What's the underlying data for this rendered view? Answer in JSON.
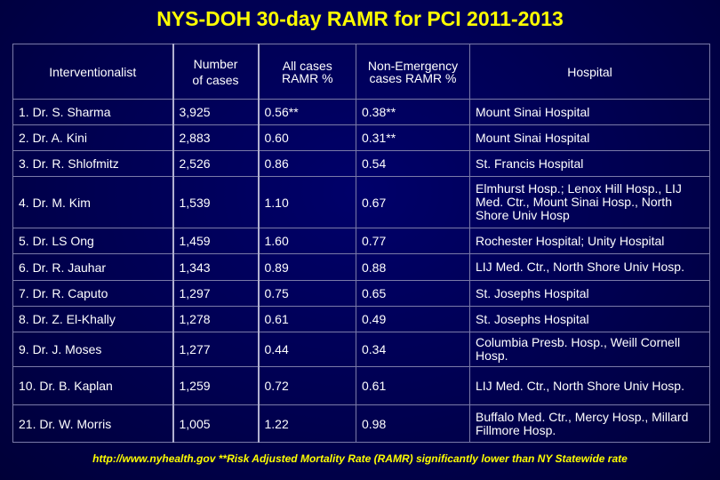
{
  "title": "NYS-DOH 30-day RAMR for PCI 2011-2013",
  "headers": {
    "interventionalist": "Interventionalist",
    "num_line1": "Number",
    "num_line2": "of cases",
    "all_line1": "All cases",
    "all_line2": "RAMR %",
    "ne_line1": "Non-Emergency",
    "ne_line2": "cases RAMR %",
    "hospital": "Hospital"
  },
  "rows": [
    {
      "name": "1. Dr. S. Sharma",
      "cases": "3,925",
      "all": "0.56**",
      "nonemerg": "0.38**",
      "hospital": "Mount Sinai Hospital"
    },
    {
      "name": "2. Dr. A. Kini",
      "cases": "2,883",
      "all": "0.60",
      "nonemerg": "0.31**",
      "hospital": "Mount Sinai Hospital"
    },
    {
      "name": "3. Dr. R. Shlofmitz",
      "cases": "2,526",
      "all": "0.86",
      "nonemerg": "0.54",
      "hospital": "St. Francis Hospital"
    },
    {
      "name": "4. Dr. M. Kim",
      "cases": "1,539",
      "all": "1.10",
      "nonemerg": "0.67",
      "hospital": "Elmhurst Hosp.; Lenox Hill Hosp., LIJ Med. Ctr., Mount Sinai Hosp., North Shore Univ Hosp"
    },
    {
      "name": "5. Dr. LS Ong",
      "cases": "1,459",
      "all": "1.60",
      "nonemerg": "0.77",
      "hospital": "Rochester Hospital; Unity Hospital"
    },
    {
      "name": "6. Dr. R. Jauhar",
      "cases": "1,343",
      "all": "0.89",
      "nonemerg": "0.88",
      "hospital": "LIJ Med. Ctr., North Shore Univ Hosp."
    },
    {
      "name": "7. Dr. R. Caputo",
      "cases": "1,297",
      "all": "0.75",
      "nonemerg": "0.65",
      "hospital": "St. Josephs Hospital"
    },
    {
      "name": "8. Dr. Z. El-Khally",
      "cases": "1,278",
      "all": "0.61",
      "nonemerg": "0.49",
      "hospital": "St. Josephs Hospital"
    },
    {
      "name": "9. Dr. J. Moses",
      "cases": "1,277",
      "all": "0.44",
      "nonemerg": "0.34",
      "hospital": "Columbia Presb. Hosp., Weill Cornell Hosp."
    },
    {
      "name": "10. Dr. B. Kaplan",
      "cases": "1,259",
      "all": "0.72",
      "nonemerg": "0.61",
      "hospital": "LIJ Med. Ctr., North Shore Univ Hosp."
    },
    {
      "name": "21. Dr. W. Morris",
      "cases": "1,005",
      "all": "1.22",
      "nonemerg": "0.98",
      "hospital": "Buffalo Med. Ctr., Mercy Hosp., Millard Fillmore Hosp."
    }
  ],
  "footer": "http://www.nyhealth.gov  **Risk Adjusted Mortality Rate (RAMR) significantly lower than NY Statewide rate",
  "colors": {
    "background": "#000050",
    "title": "#ffff00",
    "text": "#ffffff",
    "grid": "#7a7aa8"
  }
}
